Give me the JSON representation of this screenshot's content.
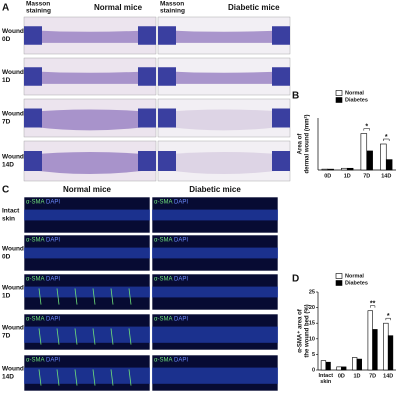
{
  "panel_a": {
    "label": "A",
    "columns": [
      {
        "method": [
          "Masson",
          "staining"
        ],
        "group": "Normal mice"
      },
      {
        "method": [
          "Masson",
          "staining"
        ],
        "group": "Diabetic mice"
      }
    ],
    "rows": [
      [
        "Wound",
        "0D"
      ],
      [
        "Wound",
        "1D"
      ],
      [
        "Wound",
        "7D"
      ],
      [
        "Wound",
        "14D"
      ]
    ]
  },
  "panel_c": {
    "label": "C",
    "columns": [
      "Normal mice",
      "Diabetic mice"
    ],
    "stain_labels": [
      "α-SMA",
      "DAPI"
    ],
    "rows": [
      [
        "Intact",
        "skin"
      ],
      [
        "Wound",
        "0D"
      ],
      [
        "Wound",
        "1D"
      ],
      [
        "Wound",
        "7D"
      ],
      [
        "Wound",
        "14D"
      ]
    ]
  },
  "chart_data": [
    {
      "type": "bar",
      "panel_label": "B",
      "y_label": [
        "Area of",
        "dermal wound (mm²)"
      ],
      "categories": [
        "0D",
        "1D",
        "7D",
        "14D"
      ],
      "series": [
        {
          "name": "Normal",
          "color": "#ffffff",
          "values": [
            0.01,
            0.02,
            0.42,
            0.3
          ]
        },
        {
          "name": "Diabetes",
          "color": "#000000",
          "values": [
            0.01,
            0.02,
            0.22,
            0.12
          ]
        }
      ],
      "significance": [
        null,
        null,
        "*",
        "*"
      ],
      "ylim": [
        0,
        0.6
      ]
    },
    {
      "type": "bar",
      "panel_label": "D",
      "y_label": [
        "α-SMA⁺ area of",
        "the wound bed (%)"
      ],
      "categories": [
        "Intact skin",
        "0D",
        "1D",
        "7D",
        "14D"
      ],
      "series": [
        {
          "name": "Normal",
          "color": "#ffffff",
          "values": [
            3,
            1,
            4,
            19,
            15
          ]
        },
        {
          "name": "Diabetes",
          "color": "#000000",
          "values": [
            2.5,
            1,
            3.5,
            13,
            11
          ]
        }
      ],
      "significance": [
        null,
        null,
        null,
        "**",
        "*"
      ],
      "ylim": [
        0,
        25
      ],
      "yticks": [
        0,
        5,
        10,
        15,
        20,
        25
      ]
    }
  ]
}
